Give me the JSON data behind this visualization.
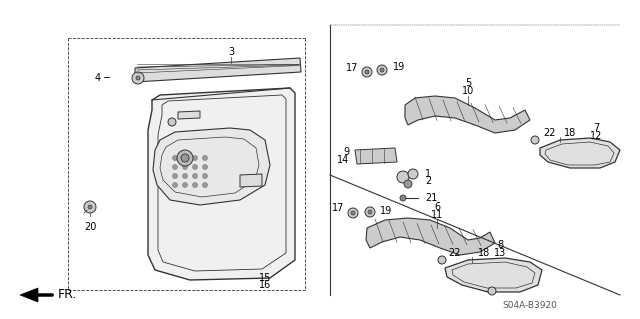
{
  "bg_color": "#ffffff",
  "diagram_code": "S04A-B3920",
  "line_color": "#333333",
  "light_gray": "#aaaaaa",
  "mid_gray": "#888888",
  "lw": 0.8,
  "label_fs": 7.0
}
